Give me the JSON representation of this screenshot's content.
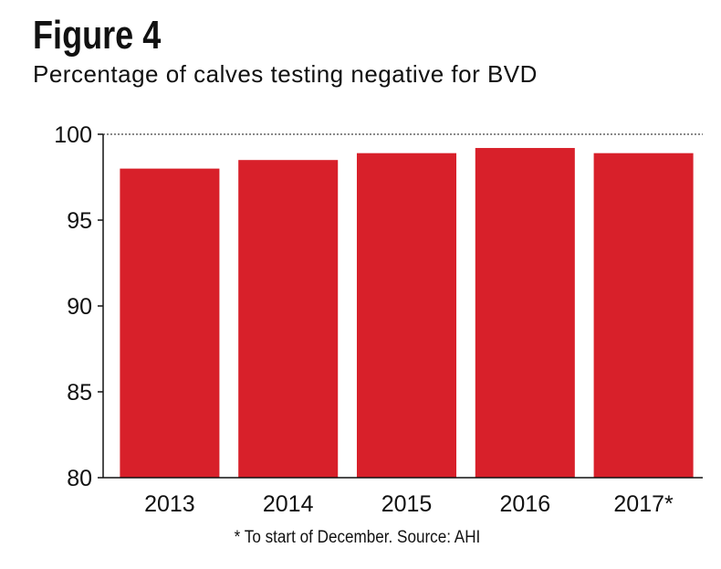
{
  "title": "Figure 4",
  "subtitle": "Percentage of calves testing negative for BVD",
  "footnote": "* To start of December. Source: AHI",
  "colors": {
    "bar": "#d8202a"
  },
  "chart_data": {
    "type": "bar",
    "title": "Figure 4",
    "subtitle": "Percentage of calves testing negative for BVD",
    "categories": [
      "2013",
      "2014",
      "2015",
      "2016",
      "2017*"
    ],
    "values": [
      98.0,
      98.5,
      98.9,
      99.2,
      98.9
    ],
    "ylim": [
      80,
      100
    ],
    "yticks": [
      "80",
      "85",
      "90",
      "95",
      "100"
    ],
    "xlabel": "",
    "ylabel": "",
    "grid": "dotted line at 100"
  }
}
